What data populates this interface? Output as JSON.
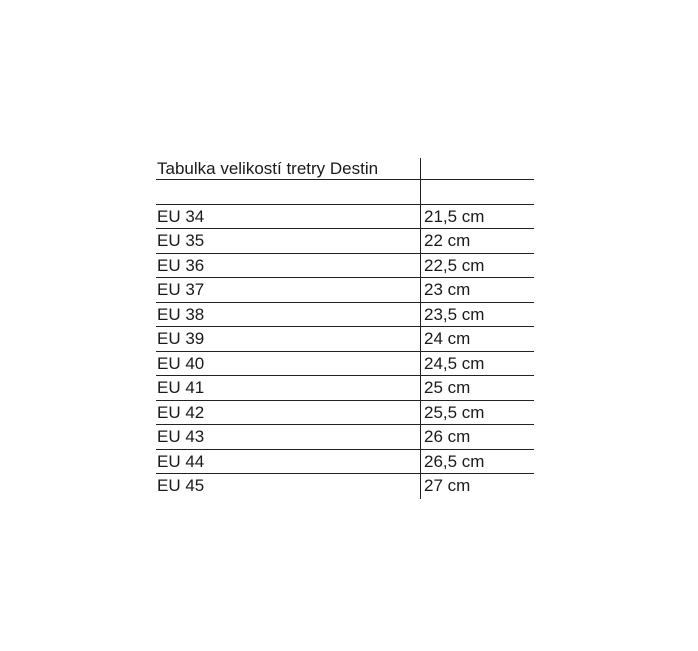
{
  "table": {
    "title": "Tabulka velikostí tretry Destin",
    "rows": [
      {
        "eu": "EU 34",
        "cm": "21,5 cm"
      },
      {
        "eu": "EU 35",
        "cm": "22 cm"
      },
      {
        "eu": "EU 36",
        "cm": "22,5 cm"
      },
      {
        "eu": "EU 37",
        "cm": "23 cm"
      },
      {
        "eu": "EU 38",
        "cm": "23,5 cm"
      },
      {
        "eu": "EU 39",
        "cm": "24 cm"
      },
      {
        "eu": "EU 40",
        "cm": "24,5 cm"
      },
      {
        "eu": "EU 41",
        "cm": "25 cm"
      },
      {
        "eu": "EU 42",
        "cm": "25,5 cm"
      },
      {
        "eu": "EU 43",
        "cm": "26 cm"
      },
      {
        "eu": "EU 44",
        "cm": "26,5 cm"
      },
      {
        "eu": "EU 45",
        "cm": "27 cm"
      }
    ]
  }
}
